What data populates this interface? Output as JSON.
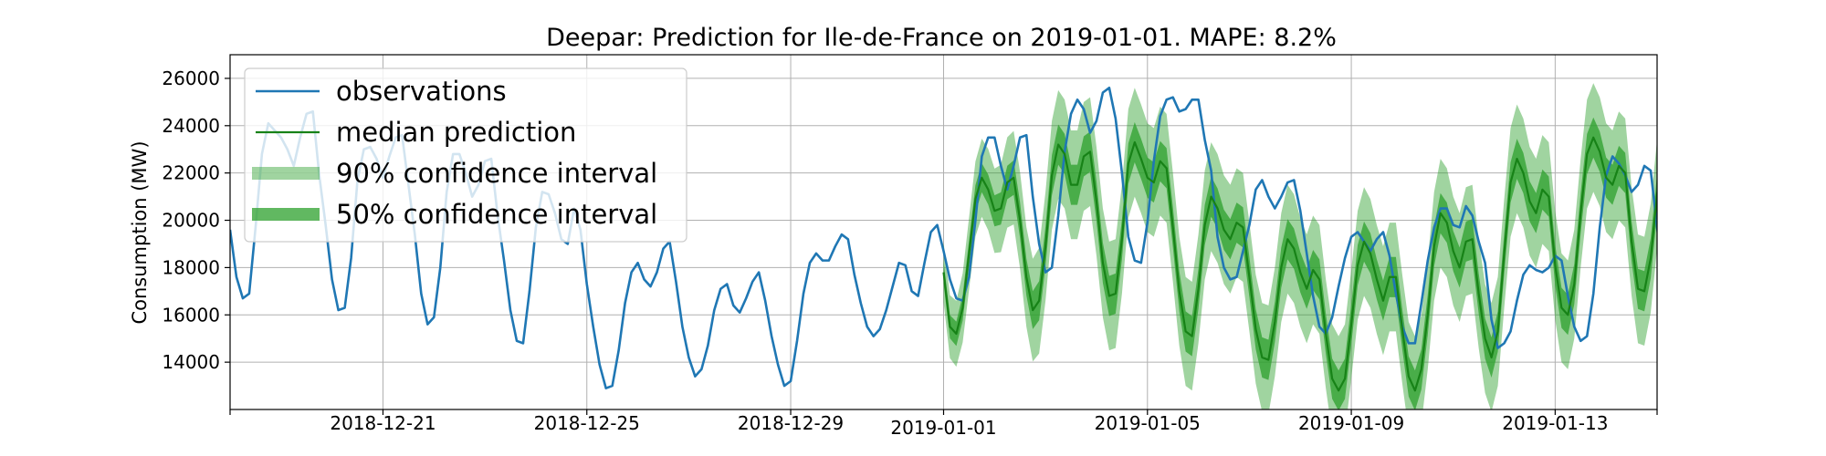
{
  "chart_data": {
    "type": "line",
    "title": "Deepar: Prediction for Ile-de-France on 2019-01-01. MAPE: 8.2%",
    "xlabel": "",
    "ylabel": "Consumption (MW)",
    "xlim": [
      "2018-12-18T00:00",
      "2019-01-15T00:00"
    ],
    "ylim": [
      12000,
      27000
    ],
    "x_ticks": [
      {
        "date": "2018-12-18",
        "label": ""
      },
      {
        "date": "2018-12-21",
        "label": "2018-12-21"
      },
      {
        "date": "2018-12-25",
        "label": "2018-12-25"
      },
      {
        "date": "2018-12-29",
        "label": "2018-12-29"
      },
      {
        "date": "2019-01-01",
        "label": "2019-01-01"
      },
      {
        "date": "2019-01-05",
        "label": "2019-01-05"
      },
      {
        "date": "2019-01-09",
        "label": "2019-01-09"
      },
      {
        "date": "2019-01-13",
        "label": "2019-01-13"
      },
      {
        "date": "2019-01-15",
        "label": ""
      }
    ],
    "y_ticks": [
      14000,
      16000,
      18000,
      20000,
      22000,
      24000,
      26000
    ],
    "y_tick_labels": [
      "14000",
      "16000",
      "18000",
      "20000",
      "22000",
      "24000",
      "26000"
    ],
    "grid": true,
    "legend_position": "top-left",
    "series": [
      {
        "name": "observations",
        "kind": "line",
        "color": "#1f77b4",
        "x_start": "2018-12-18T00:00",
        "step_hours": 3,
        "values": [
          19600,
          17600,
          16700,
          16900,
          19700,
          22800,
          24100,
          23800,
          23500,
          23000,
          22300,
          23500,
          24500,
          24600,
          21900,
          19800,
          17500,
          16200,
          16300,
          18400,
          21700,
          23000,
          23100,
          22600,
          21800,
          22700,
          23500,
          23600,
          21500,
          19400,
          16900,
          15600,
          15900,
          18000,
          21200,
          22800,
          22800,
          22000,
          21000,
          21500,
          22500,
          22600,
          20200,
          18300,
          16200,
          14900,
          14800,
          17000,
          19700,
          21200,
          21100,
          20300,
          19200,
          19000,
          20500,
          19600,
          17300,
          15500,
          13900,
          12900,
          13000,
          14500,
          16500,
          17800,
          18200,
          17500,
          17200,
          17800,
          18800,
          19100,
          17400,
          15500,
          14200,
          13400,
          13700,
          14700,
          16200,
          17100,
          17300,
          16400,
          16100,
          16700,
          17400,
          17800,
          16600,
          15100,
          13900,
          13000,
          13200,
          14900,
          16900,
          18200,
          18600,
          18300,
          18300,
          18900,
          19400,
          19200,
          17700,
          16500,
          15500,
          15100,
          15400,
          16200,
          17200,
          18200,
          18100,
          17000,
          16800,
          18200,
          19500,
          19800,
          18700,
          17500,
          16700,
          16600,
          17600,
          20000,
          22700,
          23500,
          23500,
          22300,
          21300,
          22300,
          23500,
          23600,
          21000,
          19000,
          17800,
          18000,
          20200,
          22900,
          24500,
          25100,
          24700,
          23700,
          24200,
          25400,
          25600,
          24300,
          22000,
          19300,
          18300,
          18200,
          19900,
          22500,
          24400,
          25100,
          25200,
          24600,
          24700,
          25100,
          25100,
          23400,
          22100,
          19300,
          18000,
          17500,
          17600,
          18700,
          19800,
          21300,
          21700,
          21000,
          20500,
          21000,
          21600,
          21700,
          20400,
          18600,
          16800,
          15500,
          15200,
          15900,
          17200,
          18400,
          19300,
          19500,
          19100,
          18700,
          19200,
          19500,
          18500,
          16900,
          15500,
          14800,
          14800,
          16500,
          18300,
          19700,
          20500,
          20500,
          19800,
          19700,
          20600,
          20200,
          19100,
          18200,
          15800,
          14600,
          14800,
          15300,
          16600,
          17700,
          18100,
          17900,
          17800,
          18000,
          18500,
          18300,
          16800,
          15500,
          14900,
          15100,
          16900,
          19700,
          21900,
          22700,
          22400,
          21900,
          21200,
          21500,
          22300,
          22100,
          19700,
          17600,
          16200,
          16500,
          19100,
          22200,
          23700,
          24000,
          23500,
          23100,
          23100,
          23700,
          23900,
          22400,
          19900,
          17600,
          16400,
          16500,
          18600,
          21500,
          23100,
          23900,
          23800,
          23300,
          22300,
          22000,
          21500,
          20800,
          19300,
          17600,
          16800,
          16500,
          17200,
          19300,
          21800,
          22300,
          21900,
          21100,
          20500,
          20300,
          20800,
          20700,
          19200,
          17500,
          16500,
          16200,
          16600,
          18400,
          20600,
          21800,
          22200,
          21600,
          21100,
          22100,
          23200,
          23400,
          21700,
          19600,
          17400,
          15800,
          15700,
          17600,
          20500,
          22700,
          23300,
          22500,
          21600,
          22300,
          23800,
          24000,
          22500,
          20800,
          18800,
          17400,
          17300,
          18700,
          20700,
          22200,
          22700,
          21900,
          21300,
          22300,
          23400,
          23600,
          22400,
          20900,
          19300,
          17400,
          16400,
          16400,
          18100,
          21500,
          24300,
          25300,
          25400,
          24400,
          23500,
          24100,
          25600,
          25800,
          24100,
          22400,
          20800,
          18400,
          17500,
          17500,
          19300,
          22200,
          24200,
          24900,
          24900,
          24300,
          23900,
          24800,
          26000,
          26200,
          24100,
          21900,
          19900,
          18000,
          17300,
          17400,
          19300,
          22100,
          23800,
          24400,
          24300,
          24000,
          23900,
          24500,
          24800,
          24100,
          22100,
          20300,
          18300,
          16700,
          15900,
          16400,
          18500,
          21300,
          22400,
          22300,
          21600,
          21000,
          21400,
          22000,
          22300,
          21100,
          18900,
          17500,
          16500,
          15200,
          14800,
          15400,
          17300,
          20100,
          21600,
          22000,
          21500,
          20800,
          20800,
          21700,
          22500,
          22400,
          20900,
          18800,
          16700,
          15200,
          14600,
          14700,
          16400,
          19400,
          22000,
          22600,
          22400,
          22200,
          22300,
          23600,
          23900,
          22300,
          20800,
          20000
        ]
      },
      {
        "name": "median prediction",
        "kind": "line",
        "color": "#178217",
        "x_start": "2019-01-01T00:00",
        "step_hours": 3,
        "values": [
          17800,
          15500,
          15200,
          16300,
          18600,
          20900,
          21800,
          21300,
          20400,
          20500,
          21600,
          21800,
          20000,
          17600,
          16200,
          16600,
          18900,
          21900,
          23200,
          22800,
          21500,
          21500,
          22700,
          22900,
          20800,
          18200,
          16800,
          16900,
          19200,
          22400,
          23300,
          22600,
          21800,
          21600,
          22500,
          22200,
          19700,
          17000,
          15300,
          15100,
          17100,
          19800,
          21000,
          20500,
          19600,
          19200,
          19900,
          19700,
          17600,
          15400,
          14200,
          14100,
          15700,
          18000,
          19200,
          18800,
          17800,
          17100,
          17900,
          17500,
          15200,
          13300,
          12800,
          13300,
          15600,
          18100,
          19100,
          18600,
          17500,
          16600,
          17600,
          17600,
          15400,
          13400,
          12800,
          13700,
          16000,
          18900,
          20300,
          19900,
          18700,
          18000,
          19100,
          19200,
          16900,
          15000,
          14200,
          15300,
          18600,
          21600,
          22600,
          22000,
          20800,
          20300,
          21300,
          21000,
          18100,
          16300,
          16000,
          17300,
          20300,
          22800,
          23500,
          22900,
          21800,
          21500,
          22300,
          22000,
          19100,
          17100,
          17000,
          18400,
          21100,
          22700,
          23000,
          22400,
          21600,
          21600,
          22300,
          21800,
          18700,
          16100,
          15500,
          16500,
          19000,
          20700,
          21100,
          20700,
          20000,
          19900,
          20800,
          20600,
          17900,
          15400,
          14600,
          15100,
          17200,
          19000,
          19400,
          19000,
          18600,
          18700,
          19500,
          19300,
          16800,
          14800,
          14100,
          15200,
          17800,
          20000,
          20700,
          20200,
          19400,
          19500,
          21100,
          20300
        ]
      },
      {
        "name": "90% confidence interval",
        "kind": "band",
        "color": "#2ca02c",
        "opacity": 0.45,
        "x_start": "2019-01-01T00:00",
        "step_hours": 3,
        "spread": 2300
      },
      {
        "name": "50% confidence interval",
        "kind": "band",
        "color": "#2ca02c",
        "opacity": 0.75,
        "x_start": "2019-01-01T00:00",
        "step_hours": 3,
        "spread": 850
      }
    ]
  }
}
